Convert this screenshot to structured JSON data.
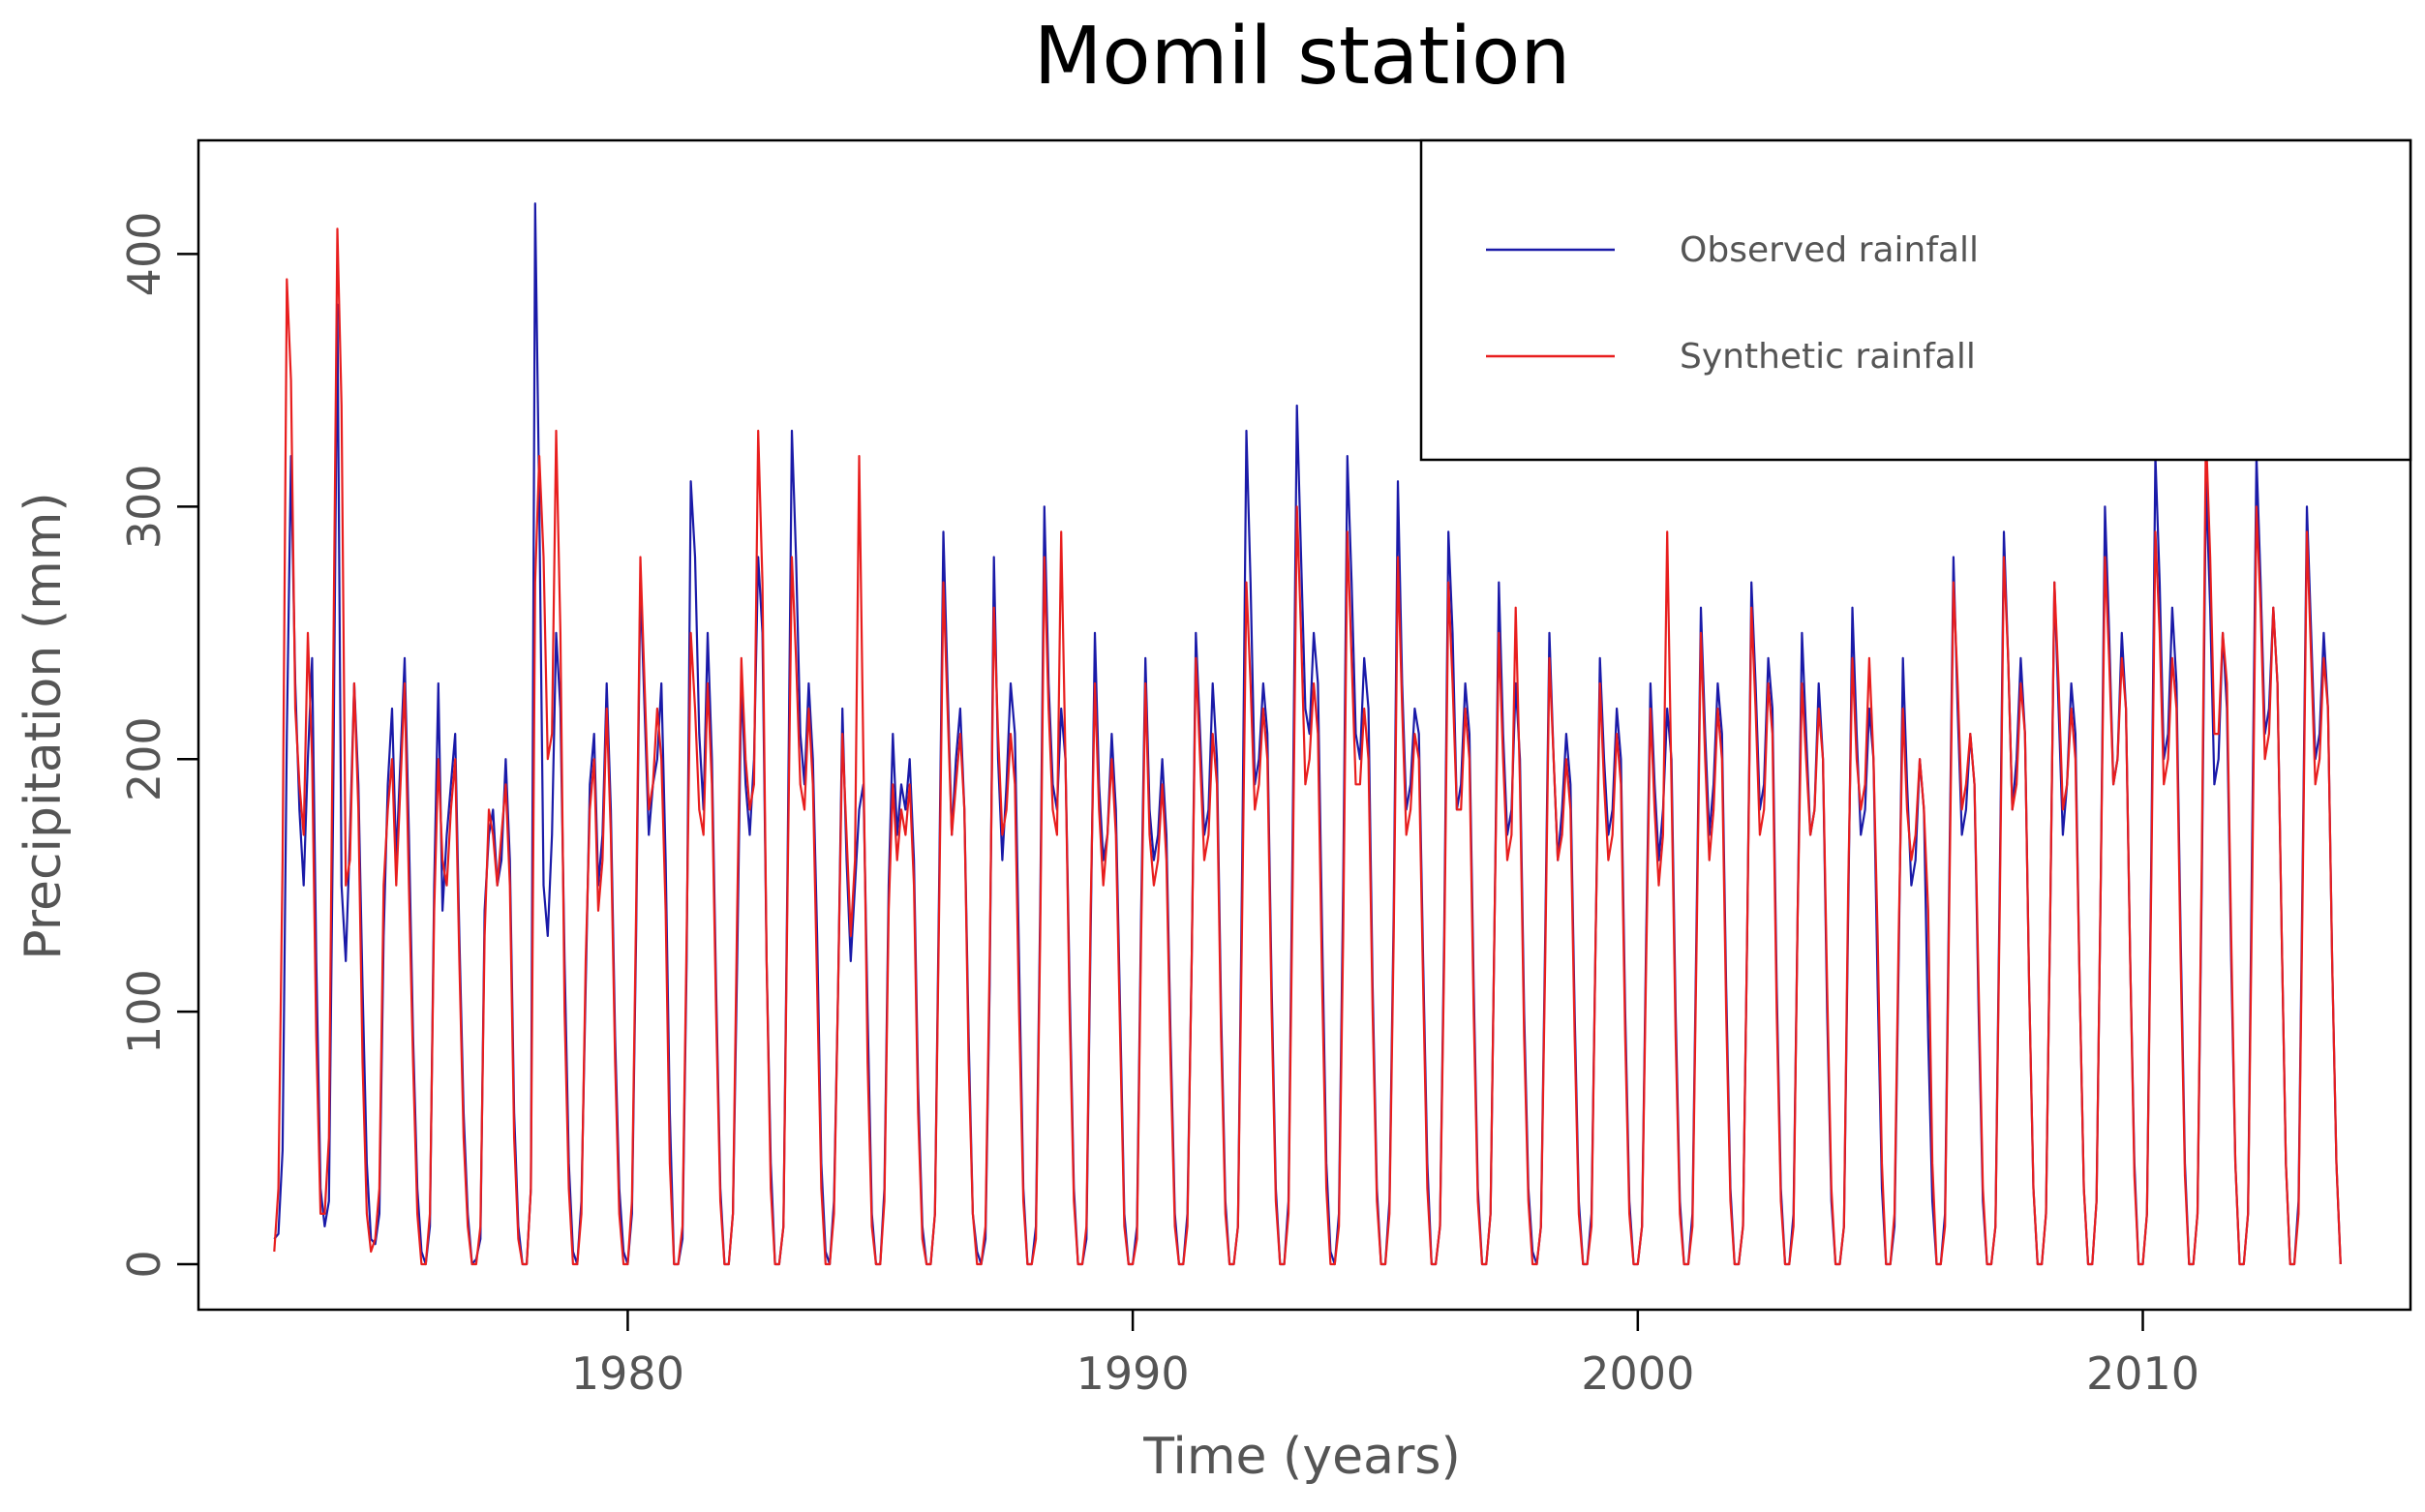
{
  "chart_data": {
    "type": "line",
    "title": "Momil station",
    "xlabel": "Time (years)",
    "ylabel": "Precipitation (mm)",
    "xlim": [
      1971.5,
      2015.3
    ],
    "ylim": [
      -18,
      445
    ],
    "xticks": [
      1980,
      1990,
      2000,
      2010
    ],
    "yticks": [
      0,
      100,
      200,
      300,
      400
    ],
    "grid": false,
    "legend_position": "top-right",
    "legend": [
      {
        "label": "Observed rainfall",
        "color": "#1a1aa8"
      },
      {
        "label": "Synthetic rainfall",
        "color": "#e81e1e"
      }
    ],
    "x_start": 1973.0,
    "step_years": 0.083333,
    "series": [
      {
        "name": "Observed rainfall",
        "color": "#1a1aa8",
        "values": [
          10,
          12,
          45,
          210,
          320,
          230,
          180,
          150,
          200,
          240,
          120,
          30,
          15,
          25,
          180,
          380,
          150,
          120,
          170,
          230,
          190,
          110,
          40,
          10,
          8,
          20,
          130,
          190,
          220,
          160,
          200,
          240,
          170,
          90,
          30,
          5,
          0,
          15,
          150,
          230,
          140,
          170,
          190,
          210,
          130,
          60,
          20,
          0,
          2,
          10,
          140,
          170,
          180,
          150,
          160,
          200,
          160,
          60,
          15,
          0,
          0,
          30,
          420,
          300,
          150,
          130,
          170,
          250,
          220,
          120,
          40,
          5,
          0,
          25,
          110,
          190,
          210,
          150,
          170,
          230,
          180,
          90,
          30,
          5,
          0,
          20,
          130,
          270,
          220,
          170,
          190,
          200,
          230,
          160,
          60,
          0,
          0,
          10,
          120,
          310,
          280,
          210,
          180,
          250,
          200,
          110,
          30,
          0,
          0,
          20,
          120,
          230,
          190,
          170,
          200,
          280,
          250,
          120,
          40,
          0,
          0,
          15,
          160,
          330,
          280,
          210,
          190,
          230,
          200,
          130,
          40,
          5,
          0,
          25,
          110,
          220,
          160,
          120,
          150,
          180,
          190,
          100,
          20,
          0,
          0,
          30,
          150,
          210,
          170,
          190,
          180,
          200,
          160,
          70,
          15,
          0,
          0,
          20,
          150,
          290,
          230,
          170,
          200,
          220,
          180,
          90,
          20,
          5,
          0,
          10,
          110,
          280,
          200,
          160,
          190,
          230,
          210,
          120,
          30,
          0,
          0,
          15,
          140,
          300,
          230,
          190,
          180,
          220,
          200,
          110,
          30,
          0,
          0,
          10,
          130,
          250,
          190,
          160,
          170,
          210,
          180,
          100,
          20,
          0,
          0,
          15,
          140,
          240,
          180,
          160,
          170,
          200,
          170,
          90,
          20,
          0,
          0,
          20,
          120,
          250,
          210,
          170,
          180,
          230,
          200,
          100,
          25,
          0,
          0,
          15,
          160,
          330,
          270,
          190,
          200,
          230,
          210,
          110,
          30,
          0,
          0,
          25,
          170,
          340,
          280,
          220,
          210,
          250,
          230,
          130,
          40,
          5,
          0,
          20,
          150,
          320,
          270,
          210,
          200,
          240,
          220,
          110,
          30,
          0,
          0,
          25,
          140,
          310,
          230,
          180,
          190,
          220,
          210,
          120,
          40,
          0,
          0,
          15,
          130,
          290,
          250,
          180,
          190,
          230,
          210,
          110,
          30,
          0,
          0,
          20,
          140,
          270,
          210,
          170,
          180,
          230,
          200,
          100,
          30,
          5,
          0,
          15,
          130,
          250,
          200,
          160,
          180,
          210,
          190,
          100,
          25,
          0,
          0,
          20,
          130,
          240,
          200,
          170,
          180,
          220,
          200,
          100,
          25,
          0,
          0,
          15,
          130,
          230,
          190,
          160,
          180,
          220,
          200,
          100,
          25,
          0,
          0,
          20,
          140,
          260,
          210,
          170,
          190,
          230,
          210,
          110,
          30,
          0,
          0,
          15,
          130,
          270,
          230,
          180,
          190,
          240,
          220,
          110,
          30,
          0,
          0,
          20,
          140,
          250,
          210,
          170,
          180,
          230,
          200,
          100,
          25,
          0,
          0,
          15,
          140,
          260,
          210,
          170,
          180,
          220,
          200,
          110,
          30,
          0,
          0,
          15,
          120,
          240,
          190,
          150,
          160,
          200,
          180,
          90,
          25,
          0,
          0,
          20,
          150,
          280,
          220,
          170,
          180,
          210,
          190,
          100,
          25,
          0,
          0,
          15,
          150,
          290,
          240,
          180,
          200,
          240,
          210,
          110,
          30,
          0,
          0,
          20,
          140,
          270,
          220,
          170,
          190,
          230,
          210,
          110,
          30,
          0,
          0,
          25,
          150,
          300,
          250,
          190,
          200,
          250,
          220,
          120,
          40,
          0,
          0,
          20,
          160,
          320,
          270,
          200,
          210,
          260,
          230,
          130,
          40,
          0,
          0,
          20,
          150,
          310,
          260,
          190,
          200,
          250,
          220,
          120,
          40,
          0,
          0,
          20,
          170,
          320,
          270,
          210,
          220,
          260,
          230,
          130,
          40,
          0,
          0,
          25,
          160,
          300,
          250,
          200,
          210,
          250,
          220,
          120,
          40,
          0
        ]
      },
      {
        "name": "Synthetic rainfall",
        "color": "#e81e1e",
        "values": [
          5,
          30,
          160,
          390,
          350,
          220,
          190,
          170,
          250,
          200,
          90,
          20,
          20,
          50,
          230,
          410,
          340,
          150,
          160,
          230,
          180,
          80,
          20,
          5,
          10,
          30,
          150,
          180,
          200,
          150,
          190,
          230,
          150,
          80,
          20,
          0,
          0,
          20,
          140,
          200,
          160,
          150,
          180,
          200,
          120,
          50,
          15,
          0,
          0,
          15,
          130,
          180,
          170,
          150,
          170,
          190,
          150,
          50,
          10,
          0,
          0,
          30,
          270,
          320,
          280,
          200,
          210,
          330,
          250,
          100,
          30,
          0,
          0,
          20,
          120,
          180,
          200,
          140,
          160,
          220,
          170,
          80,
          20,
          0,
          0,
          25,
          140,
          280,
          230,
          180,
          190,
          220,
          200,
          140,
          40,
          0,
          0,
          15,
          130,
          250,
          220,
          180,
          170,
          230,
          190,
          100,
          25,
          0,
          0,
          20,
          140,
          240,
          200,
          180,
          190,
          330,
          270,
          120,
          30,
          0,
          0,
          15,
          150,
          280,
          240,
          190,
          180,
          220,
          190,
          110,
          30,
          0,
          0,
          20,
          110,
          210,
          170,
          130,
          160,
          320,
          200,
          80,
          15,
          0,
          0,
          25,
          140,
          190,
          160,
          180,
          170,
          190,
          150,
          60,
          10,
          0,
          0,
          20,
          140,
          270,
          220,
          170,
          190,
          210,
          180,
          80,
          20,
          0,
          0,
          15,
          120,
          260,
          210,
          170,
          180,
          210,
          190,
          100,
          25,
          0,
          0,
          10,
          130,
          280,
          220,
          180,
          170,
          290,
          200,
          100,
          25,
          0,
          0,
          15,
          140,
          230,
          180,
          150,
          170,
          200,
          170,
          90,
          15,
          0,
          0,
          10,
          130,
          230,
          170,
          150,
          160,
          190,
          160,
          80,
          15,
          0,
          0,
          15,
          120,
          240,
          200,
          160,
          170,
          210,
          190,
          90,
          20,
          0,
          0,
          15,
          140,
          270,
          230,
          180,
          190,
          220,
          200,
          100,
          25,
          0,
          0,
          20,
          150,
          300,
          250,
          190,
          200,
          230,
          210,
          110,
          30,
          0,
          0,
          15,
          130,
          290,
          240,
          190,
          190,
          220,
          200,
          100,
          25,
          0,
          0,
          20,
          130,
          280,
          220,
          170,
          180,
          210,
          200,
          110,
          30,
          0,
          0,
          15,
          120,
          270,
          230,
          180,
          180,
          220,
          200,
          100,
          25,
          0,
          0,
          20,
          140,
          250,
          200,
          160,
          170,
          260,
          190,
          90,
          25,
          0,
          0,
          15,
          120,
          240,
          200,
          160,
          170,
          200,
          180,
          90,
          20,
          0,
          0,
          15,
          130,
          230,
          190,
          160,
          170,
          210,
          190,
          90,
          20,
          0,
          0,
          15,
          120,
          220,
          180,
          150,
          170,
          290,
          190,
          90,
          20,
          0,
          0,
          15,
          130,
          250,
          200,
          160,
          180,
          220,
          200,
          100,
          25,
          0,
          0,
          15,
          130,
          260,
          220,
          170,
          180,
          230,
          210,
          100,
          25,
          0,
          0,
          15,
          140,
          230,
          200,
          170,
          180,
          220,
          200,
          110,
          30,
          0,
          0,
          15,
          150,
          240,
          200,
          180,
          190,
          240,
          200,
          130,
          40,
          0,
          0,
          20,
          130,
          220,
          180,
          160,
          170,
          200,
          180,
          140,
          40,
          0,
          0,
          15,
          140,
          270,
          230,
          180,
          190,
          210,
          190,
          110,
          30,
          0,
          0,
          15,
          140,
          280,
          240,
          180,
          190,
          230,
          210,
          110,
          30,
          0,
          0,
          20,
          140,
          270,
          230,
          180,
          190,
          220,
          200,
          110,
          30,
          0,
          0,
          25,
          150,
          280,
          240,
          190,
          200,
          240,
          220,
          120,
          35,
          0,
          0,
          20,
          150,
          290,
          250,
          190,
          200,
          240,
          220,
          120,
          35,
          0,
          0,
          20,
          160,
          330,
          280,
          210,
          210,
          250,
          230,
          130,
          40,
          0,
          0,
          20,
          150,
          300,
          260,
          200,
          210,
          260,
          230,
          130,
          40,
          0,
          0,
          20,
          150,
          290,
          240,
          190,
          200,
          240,
          220,
          120,
          40,
          0
        ]
      }
    ]
  }
}
